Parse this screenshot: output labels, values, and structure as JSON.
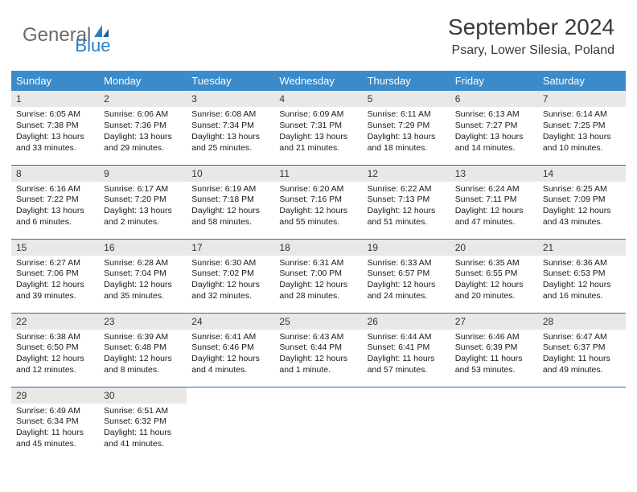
{
  "brand": {
    "part1": "General",
    "part2": "Blue"
  },
  "title": "September 2024",
  "location": "Psary, Lower Silesia, Poland",
  "colors": {
    "header_bg": "#3b8bca",
    "header_text": "#ffffff",
    "daynum_bg": "#e8e8e8",
    "row_divider": "#2e6ca3",
    "body_text": "#1a1a1a",
    "title_text": "#3a3a3a",
    "brand_gray": "#6a6a6a",
    "brand_blue": "#2a7fc4"
  },
  "typography": {
    "title_fontsize": 28,
    "location_fontsize": 16,
    "header_fontsize": 13,
    "daynum_fontsize": 12,
    "body_fontsize": 10.5
  },
  "weekdays": [
    "Sunday",
    "Monday",
    "Tuesday",
    "Wednesday",
    "Thursday",
    "Friday",
    "Saturday"
  ],
  "weeks": [
    [
      {
        "n": "1",
        "sr": "Sunrise: 6:05 AM",
        "ss": "Sunset: 7:38 PM",
        "d1": "Daylight: 13 hours",
        "d2": "and 33 minutes."
      },
      {
        "n": "2",
        "sr": "Sunrise: 6:06 AM",
        "ss": "Sunset: 7:36 PM",
        "d1": "Daylight: 13 hours",
        "d2": "and 29 minutes."
      },
      {
        "n": "3",
        "sr": "Sunrise: 6:08 AM",
        "ss": "Sunset: 7:34 PM",
        "d1": "Daylight: 13 hours",
        "d2": "and 25 minutes."
      },
      {
        "n": "4",
        "sr": "Sunrise: 6:09 AM",
        "ss": "Sunset: 7:31 PM",
        "d1": "Daylight: 13 hours",
        "d2": "and 21 minutes."
      },
      {
        "n": "5",
        "sr": "Sunrise: 6:11 AM",
        "ss": "Sunset: 7:29 PM",
        "d1": "Daylight: 13 hours",
        "d2": "and 18 minutes."
      },
      {
        "n": "6",
        "sr": "Sunrise: 6:13 AM",
        "ss": "Sunset: 7:27 PM",
        "d1": "Daylight: 13 hours",
        "d2": "and 14 minutes."
      },
      {
        "n": "7",
        "sr": "Sunrise: 6:14 AM",
        "ss": "Sunset: 7:25 PM",
        "d1": "Daylight: 13 hours",
        "d2": "and 10 minutes."
      }
    ],
    [
      {
        "n": "8",
        "sr": "Sunrise: 6:16 AM",
        "ss": "Sunset: 7:22 PM",
        "d1": "Daylight: 13 hours",
        "d2": "and 6 minutes."
      },
      {
        "n": "9",
        "sr": "Sunrise: 6:17 AM",
        "ss": "Sunset: 7:20 PM",
        "d1": "Daylight: 13 hours",
        "d2": "and 2 minutes."
      },
      {
        "n": "10",
        "sr": "Sunrise: 6:19 AM",
        "ss": "Sunset: 7:18 PM",
        "d1": "Daylight: 12 hours",
        "d2": "and 58 minutes."
      },
      {
        "n": "11",
        "sr": "Sunrise: 6:20 AM",
        "ss": "Sunset: 7:16 PM",
        "d1": "Daylight: 12 hours",
        "d2": "and 55 minutes."
      },
      {
        "n": "12",
        "sr": "Sunrise: 6:22 AM",
        "ss": "Sunset: 7:13 PM",
        "d1": "Daylight: 12 hours",
        "d2": "and 51 minutes."
      },
      {
        "n": "13",
        "sr": "Sunrise: 6:24 AM",
        "ss": "Sunset: 7:11 PM",
        "d1": "Daylight: 12 hours",
        "d2": "and 47 minutes."
      },
      {
        "n": "14",
        "sr": "Sunrise: 6:25 AM",
        "ss": "Sunset: 7:09 PM",
        "d1": "Daylight: 12 hours",
        "d2": "and 43 minutes."
      }
    ],
    [
      {
        "n": "15",
        "sr": "Sunrise: 6:27 AM",
        "ss": "Sunset: 7:06 PM",
        "d1": "Daylight: 12 hours",
        "d2": "and 39 minutes."
      },
      {
        "n": "16",
        "sr": "Sunrise: 6:28 AM",
        "ss": "Sunset: 7:04 PM",
        "d1": "Daylight: 12 hours",
        "d2": "and 35 minutes."
      },
      {
        "n": "17",
        "sr": "Sunrise: 6:30 AM",
        "ss": "Sunset: 7:02 PM",
        "d1": "Daylight: 12 hours",
        "d2": "and 32 minutes."
      },
      {
        "n": "18",
        "sr": "Sunrise: 6:31 AM",
        "ss": "Sunset: 7:00 PM",
        "d1": "Daylight: 12 hours",
        "d2": "and 28 minutes."
      },
      {
        "n": "19",
        "sr": "Sunrise: 6:33 AM",
        "ss": "Sunset: 6:57 PM",
        "d1": "Daylight: 12 hours",
        "d2": "and 24 minutes."
      },
      {
        "n": "20",
        "sr": "Sunrise: 6:35 AM",
        "ss": "Sunset: 6:55 PM",
        "d1": "Daylight: 12 hours",
        "d2": "and 20 minutes."
      },
      {
        "n": "21",
        "sr": "Sunrise: 6:36 AM",
        "ss": "Sunset: 6:53 PM",
        "d1": "Daylight: 12 hours",
        "d2": "and 16 minutes."
      }
    ],
    [
      {
        "n": "22",
        "sr": "Sunrise: 6:38 AM",
        "ss": "Sunset: 6:50 PM",
        "d1": "Daylight: 12 hours",
        "d2": "and 12 minutes."
      },
      {
        "n": "23",
        "sr": "Sunrise: 6:39 AM",
        "ss": "Sunset: 6:48 PM",
        "d1": "Daylight: 12 hours",
        "d2": "and 8 minutes."
      },
      {
        "n": "24",
        "sr": "Sunrise: 6:41 AM",
        "ss": "Sunset: 6:46 PM",
        "d1": "Daylight: 12 hours",
        "d2": "and 4 minutes."
      },
      {
        "n": "25",
        "sr": "Sunrise: 6:43 AM",
        "ss": "Sunset: 6:44 PM",
        "d1": "Daylight: 12 hours",
        "d2": "and 1 minute."
      },
      {
        "n": "26",
        "sr": "Sunrise: 6:44 AM",
        "ss": "Sunset: 6:41 PM",
        "d1": "Daylight: 11 hours",
        "d2": "and 57 minutes."
      },
      {
        "n": "27",
        "sr": "Sunrise: 6:46 AM",
        "ss": "Sunset: 6:39 PM",
        "d1": "Daylight: 11 hours",
        "d2": "and 53 minutes."
      },
      {
        "n": "28",
        "sr": "Sunrise: 6:47 AM",
        "ss": "Sunset: 6:37 PM",
        "d1": "Daylight: 11 hours",
        "d2": "and 49 minutes."
      }
    ],
    [
      {
        "n": "29",
        "sr": "Sunrise: 6:49 AM",
        "ss": "Sunset: 6:34 PM",
        "d1": "Daylight: 11 hours",
        "d2": "and 45 minutes."
      },
      {
        "n": "30",
        "sr": "Sunrise: 6:51 AM",
        "ss": "Sunset: 6:32 PM",
        "d1": "Daylight: 11 hours",
        "d2": "and 41 minutes."
      },
      null,
      null,
      null,
      null,
      null
    ]
  ]
}
